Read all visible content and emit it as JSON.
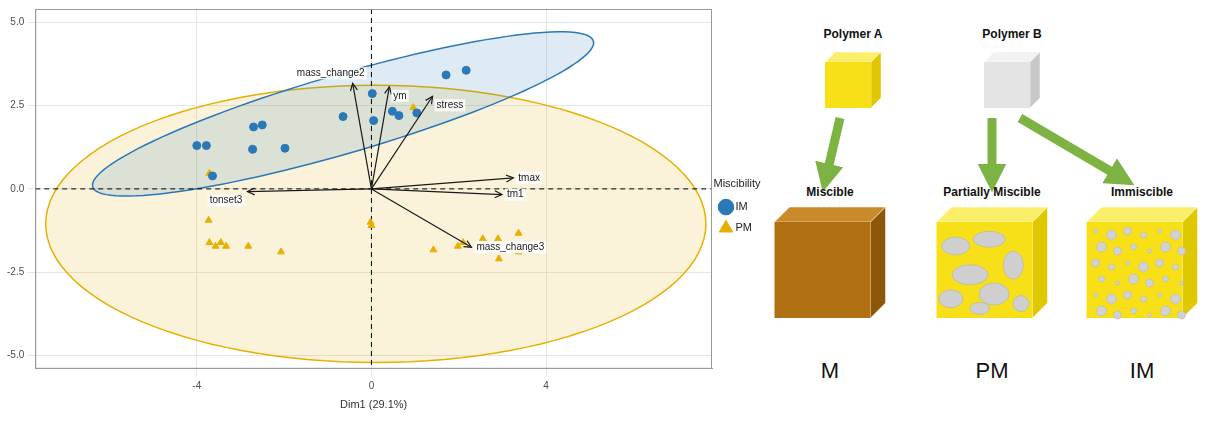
{
  "chart_data": {
    "type": "scatter",
    "x_label": "Dim1 (29.1%)",
    "xlim": [
      -7.7,
      7.8
    ],
    "ylim": [
      -5.4,
      5.4
    ],
    "xticks": [
      -4,
      0,
      4
    ],
    "yticks": [
      {
        "value": -5,
        "label": "-5.0"
      },
      {
        "value": -2.5,
        "label": "-2.5"
      },
      {
        "value": 0,
        "label": "0.0"
      },
      {
        "value": 2.5,
        "label": "2.5"
      },
      {
        "value": 5,
        "label": "5.0"
      }
    ],
    "grid": true,
    "legend": "right",
    "legend_title": "Miscibility",
    "reference_lines": {
      "x": [
        0
      ],
      "y": [
        0
      ]
    },
    "series": [
      {
        "name": "IM",
        "color": "#2a78b8",
        "marker": "circle",
        "values": [
          [
            -4.0,
            1.3
          ],
          [
            -3.78,
            1.3
          ],
          [
            -3.64,
            0.39
          ],
          [
            -2.7,
            1.86
          ],
          [
            -2.5,
            1.92
          ],
          [
            -2.72,
            1.19
          ],
          [
            -1.98,
            1.22
          ],
          [
            0.05,
            2.05
          ],
          [
            0.02,
            2.86
          ],
          [
            0.48,
            2.33
          ],
          [
            0.63,
            2.2
          ],
          [
            1.04,
            2.28
          ],
          [
            1.71,
            3.42
          ],
          [
            2.17,
            3.56
          ],
          [
            -0.65,
            2.17
          ]
        ],
        "ellipse": {
          "center": [
            -0.65,
            2.25
          ],
          "semi_axes": [
            6.14,
            1.15
          ],
          "angle": 21.2
        }
      },
      {
        "name": "PM",
        "color": "#e7b000",
        "marker": "triangle",
        "values": [
          [
            -3.71,
            0.47
          ],
          [
            -3.73,
            -0.94
          ],
          [
            -3.71,
            -1.61
          ],
          [
            -3.57,
            -1.72
          ],
          [
            -3.45,
            -1.61
          ],
          [
            -3.33,
            -1.72
          ],
          [
            -2.82,
            -1.72
          ],
          [
            -2.07,
            -1.89
          ],
          [
            -0.02,
            -1.0
          ],
          [
            0.0,
            -1.1
          ],
          [
            0.96,
            2.44
          ],
          [
            1.42,
            -1.83
          ],
          [
            1.98,
            -1.72
          ],
          [
            2.1,
            -1.61
          ],
          [
            2.55,
            -1.5
          ],
          [
            2.9,
            -1.5
          ],
          [
            2.92,
            -2.1
          ],
          [
            3.37,
            -1.33
          ],
          [
            3.37,
            -1.89
          ]
        ],
        "ellipse": {
          "center": [
            0.1,
            -1.05
          ],
          "semi_axes": [
            7.56,
            4.16
          ],
          "angle": 0
        }
      }
    ],
    "arrow_origin": [
      0,
      0
    ],
    "arrows": [
      {
        "label": "mass_change2",
        "x": -0.43,
        "y": 3.17
      },
      {
        "label": "ym",
        "x": 0.41,
        "y": 3.06
      },
      {
        "label": "stress",
        "x": 1.4,
        "y": 2.78
      },
      {
        "label": "tmax",
        "x": 3.25,
        "y": 0.33
      },
      {
        "label": "tm1",
        "x": 2.99,
        "y": -0.17
      },
      {
        "label": "mass_change3",
        "x": 2.29,
        "y": -1.75
      },
      {
        "label": "tonset3",
        "x": -2.84,
        "y": -0.08
      }
    ]
  },
  "diagram": {
    "sources": [
      "Polymer A",
      "Polymer B"
    ],
    "outcomes": [
      {
        "label": "Miscible",
        "abbr": "M"
      },
      {
        "label": "Partially Miscible",
        "abbr": "PM"
      },
      {
        "label": "Immiscible",
        "abbr": "IM"
      }
    ]
  }
}
